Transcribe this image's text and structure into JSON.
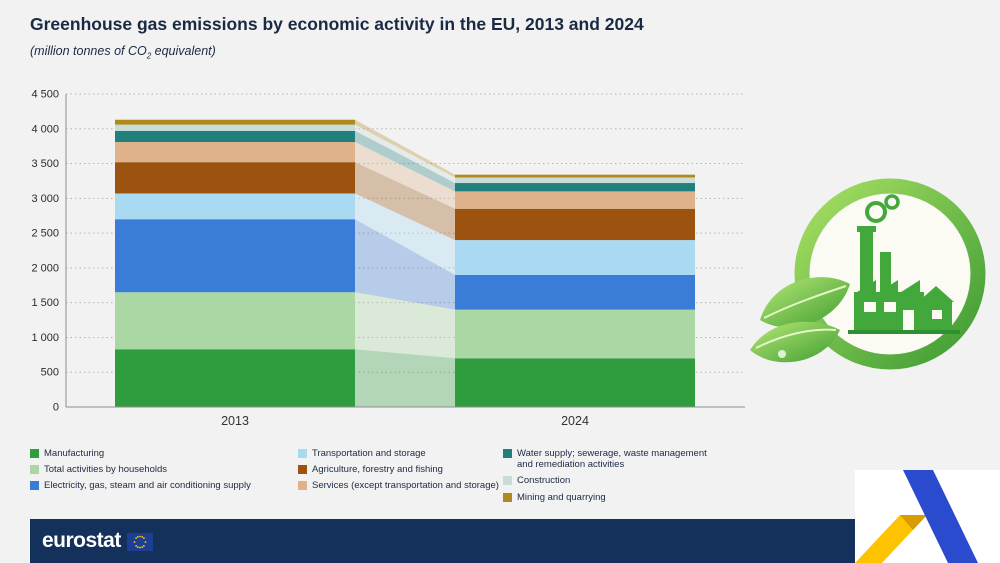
{
  "header": {
    "title": "Greenhouse gas emissions by economic activity in the EU, 2013 and 2024",
    "subtitle_pre": "(million tonnes of CO",
    "subtitle_sub": "2",
    "subtitle_post": " equivalent)"
  },
  "chart_data": {
    "type": "bar",
    "stacked": true,
    "title": "Greenhouse gas emissions by economic activity in the EU, 2013 and 2024",
    "unit_label": "million tonnes of CO2 equivalent",
    "categories": [
      "2013",
      "2024"
    ],
    "series": [
      {
        "name": "Manufacturing",
        "color": "#2f9c3e",
        "values": [
          830,
          700
        ]
      },
      {
        "name": "Total activities by households",
        "color": "#abd7a4",
        "values": [
          820,
          700
        ]
      },
      {
        "name": "Electricity, gas, steam and air conditioning supply",
        "color": "#3a7dd8",
        "values": [
          1050,
          500
        ]
      },
      {
        "name": "Transportation and storage",
        "color": "#a9daf2",
        "values": [
          370,
          500
        ]
      },
      {
        "name": "Agriculture, forestry and fishing",
        "color": "#9c5310",
        "values": [
          450,
          450
        ]
      },
      {
        "name": "Services (except transportation and storage)",
        "color": "#dfb28c",
        "values": [
          290,
          250
        ]
      },
      {
        "name": "Water supply; sewerage, waste management and remediation activities",
        "color": "#217f7c",
        "values": [
          160,
          120
        ]
      },
      {
        "name": "Construction",
        "color": "#c7ddd6",
        "values": [
          90,
          80
        ]
      },
      {
        "name": "Mining and quarrying",
        "color": "#b0891e",
        "values": [
          70,
          40
        ]
      }
    ],
    "totals": [
      4130,
      3340
    ],
    "ylim": [
      0,
      4500
    ],
    "ytick_step": 500,
    "ytick_labels": [
      "0",
      "500",
      "1 000",
      "1 500",
      "2 000",
      "2 500",
      "3 000",
      "3 500",
      "4 000",
      "4 500"
    ],
    "grid": "dotted-horizontal",
    "legend_position": "bottom"
  },
  "legend": {
    "columns": [
      [
        0,
        1,
        2
      ],
      [
        3,
        4,
        5
      ],
      [
        6,
        7,
        8
      ]
    ]
  },
  "footer": {
    "brand": "eurostat"
  }
}
